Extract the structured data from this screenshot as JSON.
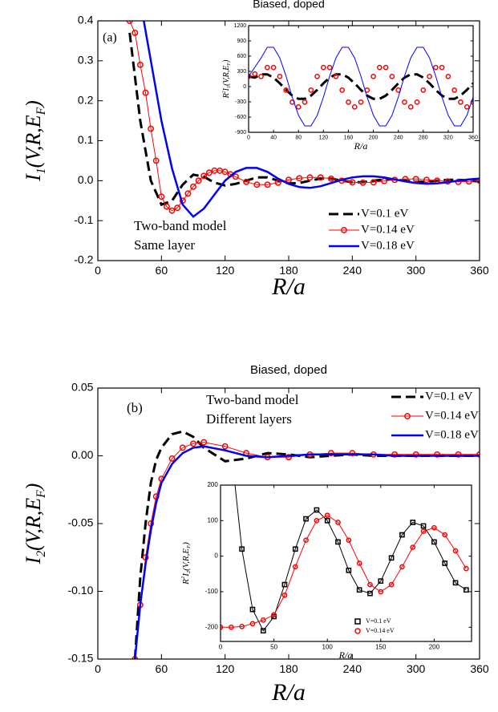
{
  "chart_data": [
    {
      "type": "line",
      "title": "Biased, doped",
      "xlabel": "R/a",
      "ylabel_parts": [
        {
          "text": "I"
        },
        {
          "text": "1",
          "shift": "sub"
        },
        {
          "text": "(V,R,E"
        },
        {
          "text": "F",
          "shift": "sub"
        },
        {
          "text": ")"
        }
      ],
      "annotations": [
        "(a)",
        "Two-band model",
        "Same layer"
      ],
      "xlim": [
        0,
        360
      ],
      "xticks": [
        0,
        60,
        120,
        180,
        240,
        300,
        360
      ],
      "ylim": [
        -0.2,
        0.4
      ],
      "yticks": [
        -0.2,
        -0.1,
        {
          "value": 0,
          "label": "0.0"
        },
        0.1,
        0.2,
        0.3,
        0.4
      ],
      "series": [
        {
          "name": "V=0.1 eV",
          "color": "#000000",
          "line": "dashed",
          "x": [
            30,
            40,
            50,
            60,
            70,
            80,
            90,
            100,
            110,
            120,
            130,
            140,
            150,
            160,
            170,
            180,
            190,
            200,
            210,
            220,
            230,
            240,
            250,
            260,
            270,
            280,
            290,
            300,
            310,
            320,
            330,
            340,
            350,
            360
          ],
          "values": [
            0.37,
            0.15,
            0.0,
            -0.06,
            -0.05,
            -0.01,
            0.015,
            0.01,
            -0.005,
            -0.012,
            -0.008,
            0.0,
            0.008,
            0.008,
            0.0,
            -0.007,
            -0.006,
            0.0,
            0.005,
            0.005,
            0.0,
            -0.004,
            -0.004,
            0.0,
            0.003,
            0.003,
            0.0,
            -0.003,
            -0.003,
            0.0,
            0.002,
            0.002,
            0.0,
            -0.002
          ]
        },
        {
          "name": "V=0.14 eV",
          "color": "#ff0000",
          "line": "thin",
          "marker": "circle",
          "x": [
            30,
            35,
            40,
            45,
            50,
            55,
            60,
            65,
            70,
            75,
            80,
            85,
            90,
            95,
            100,
            105,
            110,
            115,
            120,
            125,
            130,
            140,
            150,
            160,
            170,
            180,
            190,
            200,
            210,
            220,
            230,
            240,
            250,
            260,
            270,
            280,
            290,
            300,
            310,
            320,
            330,
            340,
            350,
            360
          ],
          "values": [
            0.4,
            0.37,
            0.29,
            0.22,
            0.13,
            0.05,
            -0.04,
            -0.065,
            -0.075,
            -0.068,
            -0.05,
            -0.032,
            -0.015,
            0.0,
            0.012,
            0.02,
            0.025,
            0.025,
            0.022,
            0.016,
            0.01,
            -0.003,
            -0.01,
            -0.01,
            -0.005,
            0.002,
            0.006,
            0.008,
            0.008,
            0.005,
            0.0,
            -0.004,
            -0.005,
            -0.004,
            -0.001,
            0.002,
            0.004,
            0.004,
            0.002,
            0.0,
            -0.002,
            -0.003,
            -0.002,
            0.0
          ]
        },
        {
          "name": "V=0.18 eV",
          "color": "#0000ff",
          "line": "thick",
          "x": [
            40,
            50,
            60,
            70,
            80,
            90,
            100,
            110,
            120,
            130,
            140,
            150,
            160,
            170,
            180,
            190,
            200,
            210,
            220,
            230,
            240,
            250,
            260,
            270,
            280,
            290,
            300,
            310,
            320,
            330,
            340,
            350,
            360
          ],
          "values": [
            0.45,
            0.3,
            0.15,
            0.03,
            -0.06,
            -0.09,
            -0.07,
            -0.035,
            0.0,
            0.022,
            0.032,
            0.032,
            0.022,
            0.005,
            -0.008,
            -0.016,
            -0.018,
            -0.014,
            -0.006,
            0.002,
            0.008,
            0.011,
            0.011,
            0.008,
            0.003,
            -0.002,
            -0.006,
            -0.008,
            -0.007,
            -0.004,
            0.0,
            0.003,
            0.005
          ]
        }
      ]
    },
    {
      "type": "line",
      "xlabel": "R/a",
      "ylabel_parts": [
        {
          "text": "R"
        },
        {
          "text": "2",
          "shift": "super"
        },
        {
          "text": "I"
        },
        {
          "text": "1",
          "shift": "sub"
        },
        {
          "text": "(V,R,E"
        },
        {
          "text": "F",
          "shift": "sub"
        },
        {
          "text": ")"
        }
      ],
      "xlim": [
        0,
        360
      ],
      "xticks": [
        0,
        40,
        80,
        120,
        160,
        200,
        240,
        280,
        320,
        360
      ],
      "ylim": [
        -900,
        1200
      ],
      "yticks": [
        -900,
        -600,
        -300,
        0,
        300,
        600,
        900,
        1200
      ],
      "series": [
        {
          "color": "#000000",
          "line": "dashed",
          "x": [
            0,
            10,
            20,
            30,
            40,
            50,
            60,
            70,
            80,
            90,
            100,
            110,
            120,
            130,
            140,
            150,
            160,
            170,
            180,
            190,
            200,
            210,
            220,
            230,
            240,
            250,
            260,
            270,
            280,
            290,
            300,
            310,
            320,
            330,
            340,
            350,
            360
          ],
          "values": [
            200,
            177,
            241,
            241,
            177,
            65,
            -65,
            -177,
            -241,
            -241,
            -177,
            -65,
            65,
            177,
            241,
            241,
            177,
            65,
            -65,
            -177,
            -241,
            -241,
            -177,
            -65,
            65,
            177,
            241,
            241,
            177,
            65,
            -65,
            -177,
            -241,
            -241,
            -177,
            -65,
            65
          ]
        },
        {
          "color": "#ff0000",
          "line": "none",
          "marker": "circle",
          "x": [
            0,
            10,
            20,
            30,
            40,
            50,
            60,
            70,
            80,
            90,
            100,
            110,
            120,
            130,
            140,
            150,
            160,
            170,
            180,
            190,
            200,
            210,
            220,
            230,
            240,
            250,
            260,
            270,
            280,
            290,
            300,
            310,
            320,
            330,
            340,
            350,
            360
          ],
          "values": [
            200,
            250,
            200,
            376,
            376,
            200,
            -69,
            -306,
            -400,
            -306,
            -69,
            200,
            376,
            376,
            200,
            -69,
            -306,
            -400,
            -306,
            -69,
            200,
            376,
            376,
            200,
            -69,
            -306,
            -400,
            -306,
            -69,
            200,
            376,
            376,
            200,
            -69,
            -306,
            -400,
            -306
          ]
        },
        {
          "color": "#0000ff",
          "line": "thin",
          "x": [
            0,
            10,
            20,
            30,
            40,
            50,
            60,
            70,
            80,
            90,
            100,
            110,
            120,
            130,
            140,
            150,
            160,
            170,
            180,
            190,
            200,
            210,
            220,
            230,
            240,
            250,
            260,
            270,
            280,
            290,
            300,
            310,
            320,
            330,
            340,
            350,
            360
          ],
          "values": [
            200,
            380,
            566,
            773,
            773,
            566,
            207,
            -207,
            -566,
            -773,
            -773,
            -566,
            -207,
            207,
            566,
            773,
            773,
            566,
            207,
            -207,
            -566,
            -773,
            -773,
            -566,
            -207,
            207,
            566,
            773,
            773,
            566,
            207,
            -207,
            -566,
            -773,
            -773,
            -566,
            -207
          ]
        }
      ]
    },
    {
      "type": "line",
      "title": "Biased, doped",
      "xlabel": "R/a",
      "ylabel_parts": [
        {
          "text": "I"
        },
        {
          "text": "2",
          "shift": "sub"
        },
        {
          "text": "(V,R,E"
        },
        {
          "text": "F",
          "shift": "sub"
        },
        {
          "text": ")"
        }
      ],
      "annotations": [
        "(b)",
        "Two-band model",
        "Different layers"
      ],
      "xlim": [
        0,
        360
      ],
      "xticks": [
        0,
        60,
        120,
        180,
        240,
        300,
        360
      ],
      "ylim": [
        -0.15,
        0.05
      ],
      "yticks": [
        -0.15,
        {
          "value": -0.1,
          "label": "-0.10"
        },
        -0.05,
        {
          "value": 0,
          "label": "0.00"
        },
        0.05
      ],
      "series": [
        {
          "name": "V=0.1 eV",
          "color": "#000000",
          "line": "dashed",
          "x": [
            35,
            40,
            45,
            50,
            55,
            60,
            70,
            80,
            90,
            100,
            120,
            140,
            160,
            180,
            200,
            220,
            240,
            260,
            280,
            300,
            320,
            340,
            360
          ],
          "values": [
            -0.15,
            -0.09,
            -0.05,
            -0.02,
            -0.003,
            0.006,
            0.016,
            0.018,
            0.014,
            0.006,
            -0.004,
            -0.002,
            0.002,
            0.001,
            -0.001,
            0,
            0.001,
            0,
            0,
            0,
            0,
            0,
            0
          ]
        },
        {
          "name": "V=0.14 eV",
          "color": "#ff0000",
          "line": "thin",
          "marker": "circle",
          "x": [
            35,
            40,
            45,
            50,
            55,
            60,
            70,
            80,
            90,
            100,
            120,
            140,
            160,
            180,
            200,
            220,
            240,
            260,
            280,
            300,
            320,
            340,
            360
          ],
          "values": [
            -0.15,
            -0.11,
            -0.075,
            -0.05,
            -0.03,
            -0.017,
            -0.002,
            0.006,
            0.009,
            0.01,
            0.007,
            0.002,
            -0.001,
            -0.001,
            0.001,
            0.002,
            0.002,
            0.001,
            0.001,
            0.001,
            0.001,
            0.001,
            0.001
          ]
        },
        {
          "name": "V=0.18 eV",
          "color": "#0000ff",
          "line": "thick",
          "x": [
            35,
            40,
            45,
            50,
            55,
            60,
            70,
            80,
            90,
            100,
            120,
            140,
            160,
            180,
            200,
            220,
            240,
            260,
            280,
            300,
            320,
            340,
            360
          ],
          "values": [
            -0.15,
            -0.11,
            -0.08,
            -0.055,
            -0.035,
            -0.02,
            -0.006,
            0.002,
            0.006,
            0.007,
            0.004,
            0,
            -0.001,
            0,
            0.001,
            0.001,
            0.001,
            0.001,
            0,
            0,
            0,
            0,
            0
          ]
        }
      ]
    },
    {
      "type": "line",
      "xlabel": "R/a",
      "ylabel_parts": [
        {
          "text": "R"
        },
        {
          "text": "2",
          "shift": "super"
        },
        {
          "text": "I"
        },
        {
          "text": "2",
          "shift": "sub"
        },
        {
          "text": "(V,R,E"
        },
        {
          "text": "F",
          "shift": "sub"
        },
        {
          "text": ")"
        }
      ],
      "xlim": [
        0,
        235
      ],
      "xticks": [
        0,
        50,
        100,
        150,
        200
      ],
      "ylim": [
        -240,
        200
      ],
      "yticks": [
        -200,
        -100,
        0,
        100,
        200
      ],
      "series": [
        {
          "name": "V=0.1 eV",
          "color": "#000000",
          "line": "thin",
          "marker": "square",
          "x": [
            10,
            20,
            30,
            40,
            50,
            60,
            70,
            80,
            90,
            100,
            110,
            120,
            130,
            140,
            150,
            160,
            170,
            180,
            190,
            200,
            210,
            220,
            230
          ],
          "values": [
            300,
            20,
            -150,
            -210,
            -170,
            -80,
            20,
            105,
            130,
            100,
            40,
            -40,
            -95,
            -105,
            -70,
            -5,
            60,
            95,
            85,
            40,
            -20,
            -75,
            -95
          ]
        },
        {
          "name": "V=0.14 eV",
          "color": "#ff0000",
          "line": "thin",
          "marker": "circle",
          "x": [
            0,
            10,
            20,
            30,
            40,
            50,
            60,
            70,
            80,
            90,
            100,
            110,
            120,
            130,
            140,
            150,
            160,
            170,
            180,
            190,
            200,
            210,
            220,
            230
          ],
          "values": [
            -200,
            -200,
            -198,
            -190,
            -180,
            -165,
            -110,
            -30,
            45,
            100,
            115,
            95,
            45,
            -20,
            -80,
            -100,
            -80,
            -30,
            25,
            70,
            80,
            60,
            15,
            -35
          ]
        }
      ]
    }
  ]
}
